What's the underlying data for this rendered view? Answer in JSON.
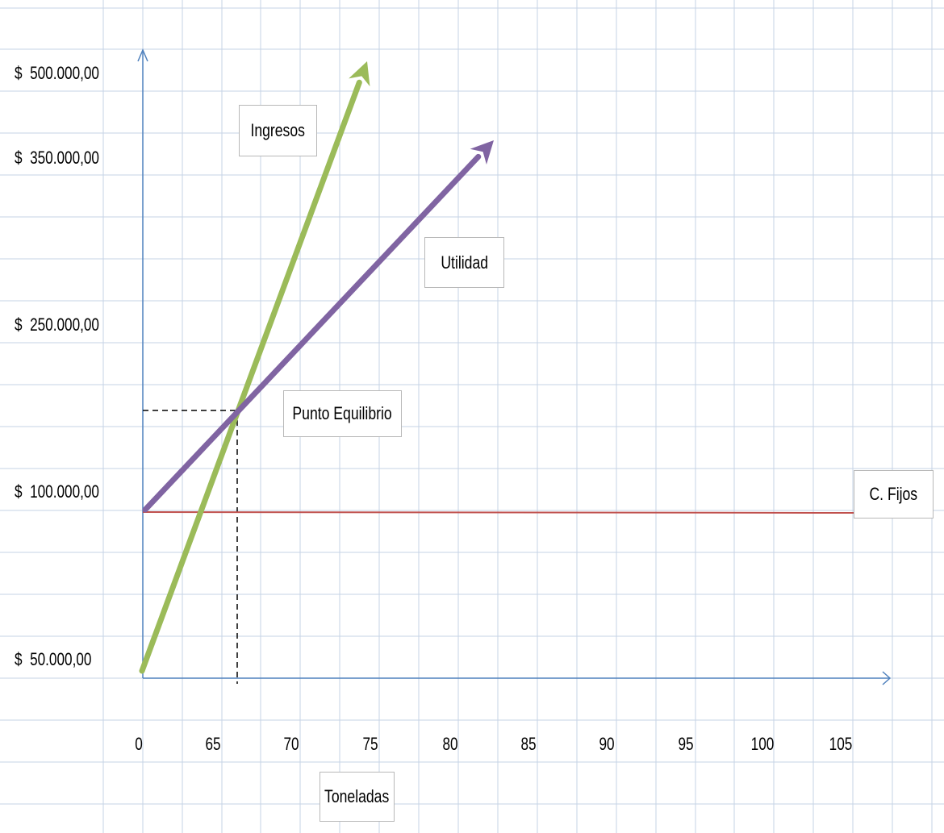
{
  "chart_data": {
    "type": "line",
    "xlabel": "Toneladas",
    "x_ticks": [
      "0",
      "65",
      "70",
      "75",
      "80",
      "85",
      "90",
      "95",
      "100",
      "105"
    ],
    "y_ticks": [
      "$  50.000,00",
      "$  100.000,00",
      "$  250.000,00",
      "$  350.000,00",
      "$  500.000,00"
    ],
    "series": [
      {
        "name": "Ingresos",
        "color": "#9bbb59",
        "from": {
          "x": "0",
          "y": "$  50.000,00"
        },
        "to": {
          "x": "75",
          "y": "$  500.000,00"
        },
        "arrow": true
      },
      {
        "name": "Utilidad",
        "color": "#8064a2",
        "from": {
          "x": "0",
          "y": "$  100.000,00"
        },
        "to": {
          "x": "80",
          "y": "$  350.000,00"
        },
        "arrow": true
      },
      {
        "name": "C. Fijos",
        "color": "#c0504d",
        "from": {
          "x": "0",
          "y": "$  100.000,00"
        },
        "to": {
          "x": "105",
          "y": "$  100.000,00"
        },
        "arrow": false
      }
    ],
    "annotations": [
      {
        "text": "Punto Equilibrio",
        "type": "break-even marker with dashed guide lines"
      }
    ],
    "grid": true,
    "axis_color": "#4f81bd"
  }
}
